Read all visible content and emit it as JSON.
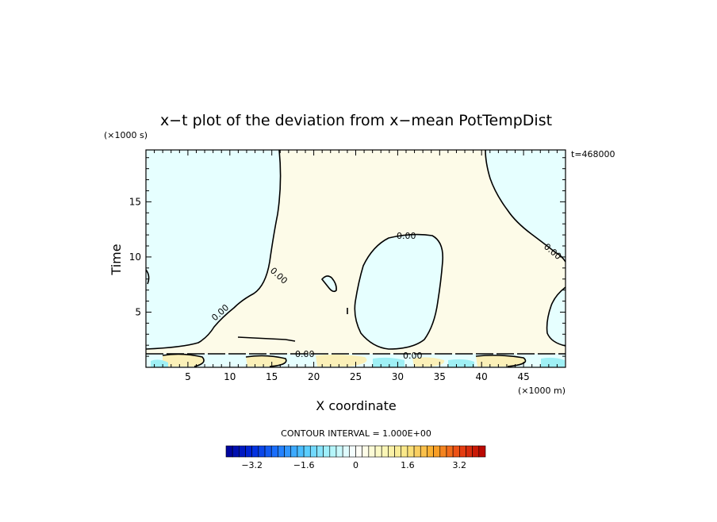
{
  "chart_data": {
    "type": "heatmap",
    "title": "x−t plot of the deviation from x−mean PotTempDist",
    "xlabel": "X coordinate",
    "ylabel": "Time",
    "x_unit": "(×1000 m)",
    "y_unit": "(×1000 s)",
    "time_stamp": "t=468000",
    "xlim": [
      0,
      50
    ],
    "ylim": [
      0,
      19.7
    ],
    "x_ticks": [
      5,
      10,
      15,
      20,
      25,
      30,
      35,
      40,
      45
    ],
    "y_ticks": [
      5,
      10,
      15
    ],
    "contour_interval_text": "CONTOUR INTERVAL = 1.000E+00",
    "contour_labels": [
      "0.00",
      "0.00",
      "0.00",
      "0.00",
      "0.00",
      "0.00"
    ],
    "colorbar": {
      "min": -4,
      "max": 4,
      "step": 0.2,
      "tick_values": [
        -3.2,
        -1.6,
        0,
        1.6,
        3.2
      ],
      "tick_labels": [
        "−3.2",
        "−1.6",
        "0",
        "1.6",
        "3.2"
      ]
    },
    "colors": {
      "negative_region": "#e6ffff",
      "positive_region": "#fdfbe8",
      "strong_negative": "#9ff0f5",
      "strong_positive": "#fbf0b8",
      "contour_line": "#000000"
    }
  }
}
